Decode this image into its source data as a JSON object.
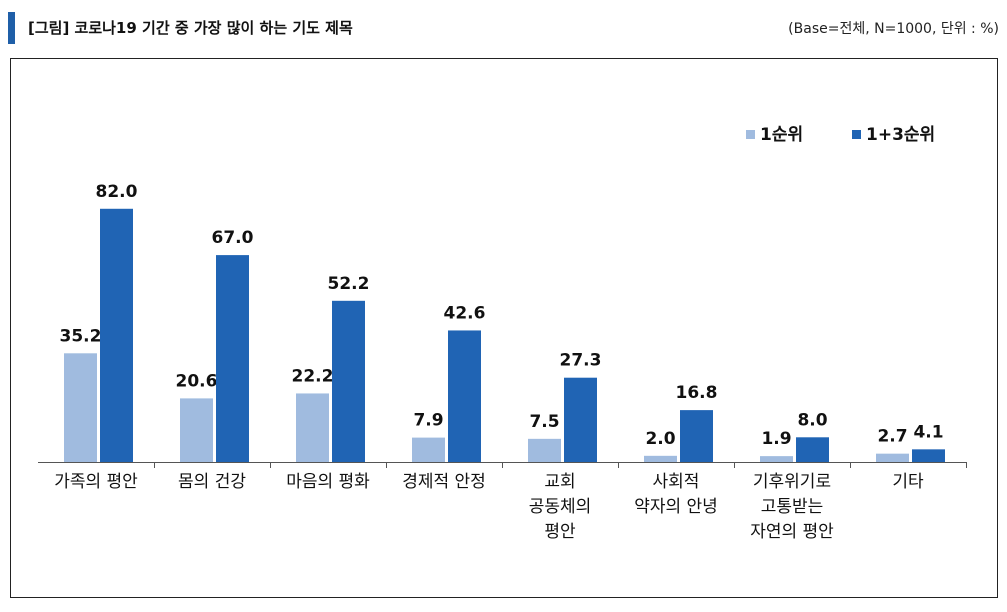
{
  "header": {
    "title": "[그림] 코로나19 기간 중 가장 많이 하는 기도 제목",
    "base_note": "(Base=전체, N=1000, 단위 : %)"
  },
  "colors": {
    "series1": "#a0bbdf",
    "series2": "#2064b4",
    "accent": "#1f5fa8"
  },
  "chart_data": {
    "type": "bar",
    "title": "코로나19 기간 중 가장 많이 하는 기도 제목",
    "unit": "%",
    "categories": [
      [
        "가족의 평안"
      ],
      [
        "몸의 건강"
      ],
      [
        "마음의 평화"
      ],
      [
        "경제적 안정"
      ],
      [
        "교회",
        "공동체의",
        "평안"
      ],
      [
        "사회적",
        "약자의 안녕"
      ],
      [
        "기후위기로",
        "고통받는",
        "자연의 평안"
      ],
      [
        "기타"
      ]
    ],
    "series": [
      {
        "name": "1순위",
        "values": [
          35.2,
          20.6,
          22.2,
          7.9,
          7.5,
          2.0,
          1.9,
          2.7
        ]
      },
      {
        "name": "1+3순위",
        "values": [
          82.0,
          67.0,
          52.2,
          42.6,
          27.3,
          16.8,
          8.0,
          4.1
        ]
      }
    ],
    "ylim": [
      0,
      100
    ],
    "legend": "top-right",
    "grid": false
  }
}
